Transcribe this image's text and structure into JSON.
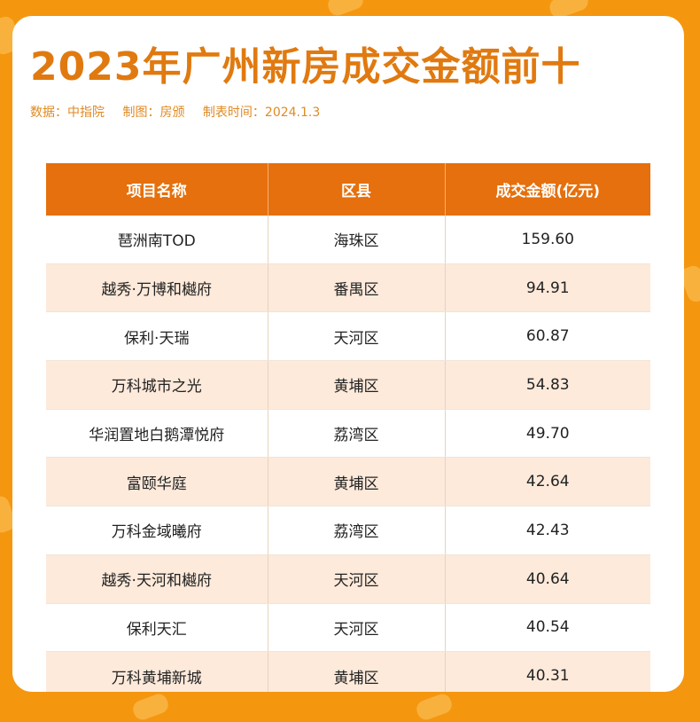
{
  "header": {
    "title": "2023年广州新房成交金额前十",
    "source": "数据：中指院",
    "chart_by": "制图：房颁",
    "date": "制表时间：2024.1.3"
  },
  "table": {
    "columns": [
      "项目名称",
      "区县",
      "成交金额(亿元)"
    ],
    "rows": [
      {
        "name": "琶洲南TOD",
        "district": "海珠区",
        "amount": "159.60"
      },
      {
        "name": "越秀·万博和樾府",
        "district": "番禺区",
        "amount": "94.91"
      },
      {
        "name": "保利·天瑞",
        "district": "天河区",
        "amount": "60.87"
      },
      {
        "name": "万科城市之光",
        "district": "黄埔区",
        "amount": "54.83"
      },
      {
        "name": "华润置地白鹅潭悦府",
        "district": "荔湾区",
        "amount": "49.70"
      },
      {
        "name": "富颐华庭",
        "district": "黄埔区",
        "amount": "42.64"
      },
      {
        "name": "万科金域曦府",
        "district": "荔湾区",
        "amount": "42.43"
      },
      {
        "name": "越秀·天河和樾府",
        "district": "天河区",
        "amount": "40.64"
      },
      {
        "name": "保利天汇",
        "district": "天河区",
        "amount": "40.54"
      },
      {
        "name": "万科黄埔新城",
        "district": "黄埔区",
        "amount": "40.31"
      }
    ]
  },
  "colors": {
    "background": "#f5960f",
    "title": "#e07a10",
    "header_bg": "#e5700d",
    "row_alt": "#fdeadb"
  }
}
